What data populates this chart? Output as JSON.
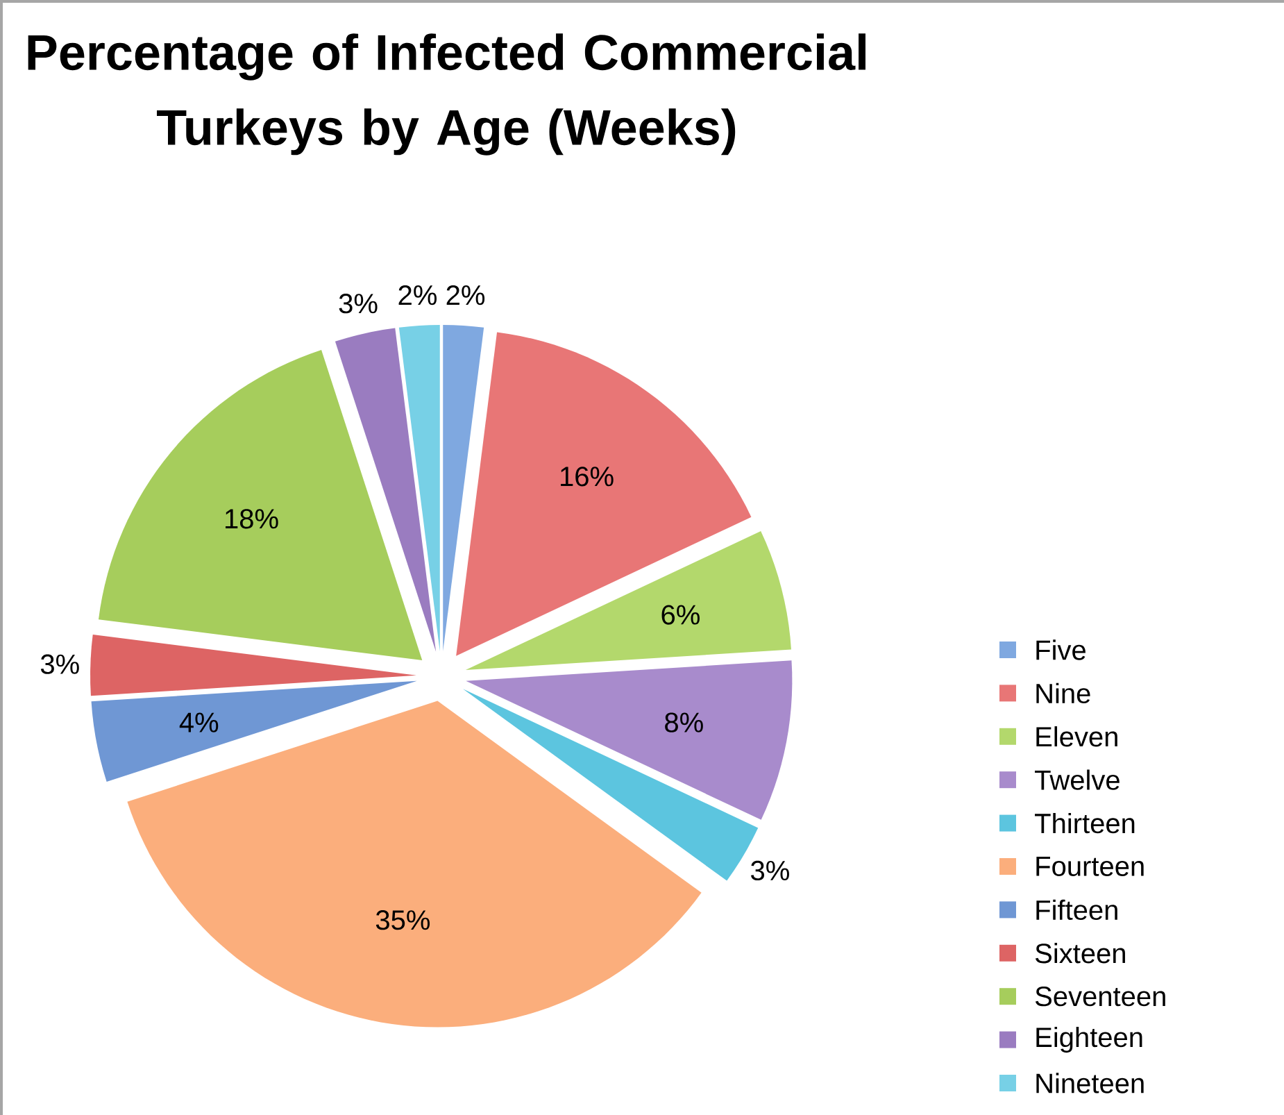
{
  "chart_data": {
    "type": "pie",
    "title": "Percentage of Infected Commercial Turkeys by Age (Weeks)",
    "categories": [
      "Five",
      "Nine",
      "Eleven",
      "Twelve",
      "Thirteen",
      "Fourteen",
      "Fifteen",
      "Sixteen",
      "Seventeen",
      "Eighteen",
      "Nineteen"
    ],
    "values": [
      2,
      16,
      6,
      8,
      3,
      35,
      4,
      3,
      18,
      3,
      2
    ],
    "value_labels": [
      "2%",
      "16%",
      "6%",
      "8%",
      "3%",
      "35%",
      "4%",
      "3%",
      "18%",
      "3%",
      "2%"
    ],
    "colors": [
      "#7fa8e0",
      "#e87676",
      "#b3d86c",
      "#a88bcc",
      "#5cc5df",
      "#fbae7c",
      "#6f97d4",
      "#dd6464",
      "#a6cd5c",
      "#9a7cc0",
      "#77d0e6"
    ],
    "legend": "right"
  }
}
